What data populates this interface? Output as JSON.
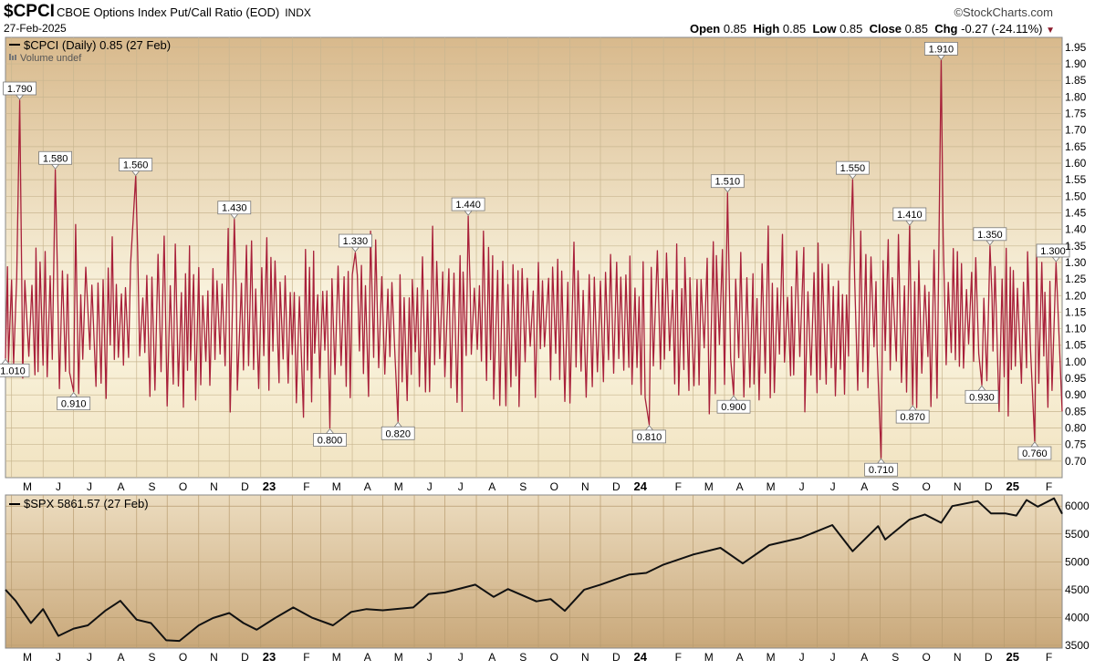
{
  "header": {
    "symbol": "$CPCI",
    "description": "CBOE Options Index Put/Call Ratio (EOD)",
    "exchange": "INDX",
    "date": "27-Feb-2025",
    "brand": "©StockCharts.com",
    "ohlc": {
      "open_label": "Open",
      "open": "0.85",
      "high_label": "High",
      "high": "0.85",
      "low_label": "Low",
      "low": "0.85",
      "close_label": "Close",
      "close": "0.85",
      "chg_label": "Chg",
      "chg": "-0.27 (-24.11%)"
    }
  },
  "colors": {
    "cpci_line": "#a8203a",
    "spx_line": "#111111",
    "panel_top": "#d8b98c",
    "panel_mid": "#fbf6e2",
    "lower_top": "#ecdcbf",
    "lower_bottom": "#c9a87a",
    "grid": "#c8b690"
  },
  "chart_data": [
    {
      "type": "line",
      "legend": "$CPCI (Daily) 0.85 (27 Feb)",
      "legend_sub": "Volume undef",
      "ylim": [
        0.65,
        1.98
      ],
      "y_ticks": [
        0.7,
        0.75,
        0.8,
        0.85,
        0.9,
        0.95,
        1.0,
        1.05,
        1.1,
        1.15,
        1.2,
        1.25,
        1.3,
        1.35,
        1.4,
        1.45,
        1.5,
        1.55,
        1.6,
        1.65,
        1.7,
        1.75,
        1.8,
        1.85,
        1.9,
        1.95
      ],
      "months": [
        "M",
        "J",
        "J",
        "A",
        "S",
        "O",
        "N",
        "D",
        "23",
        "F",
        "M",
        "A",
        "M",
        "J",
        "J",
        "A",
        "S",
        "O",
        "N",
        "D",
        "24",
        "F",
        "M",
        "A",
        "M",
        "J",
        "J",
        "A",
        "S",
        "O",
        "N",
        "D",
        "25",
        "F"
      ],
      "year_labels": [
        "23",
        "24",
        "25"
      ],
      "x_start": "2022-04-25",
      "x_end": "2025-02-27",
      "annotations": [
        {
          "date": "2022-04-25",
          "value": 1.01,
          "label": "1.010",
          "pos": "below"
        },
        {
          "date": "2022-05-09",
          "value": 1.79,
          "label": "1.790",
          "pos": "above"
        },
        {
          "date": "2022-06-13",
          "value": 1.58,
          "label": "1.580",
          "pos": "above"
        },
        {
          "date": "2022-07-01",
          "value": 0.91,
          "label": "0.910",
          "pos": "below"
        },
        {
          "date": "2022-08-31",
          "value": 1.56,
          "label": "1.560",
          "pos": "above"
        },
        {
          "date": "2022-12-06",
          "value": 1.43,
          "label": "1.430",
          "pos": "above"
        },
        {
          "date": "2023-03-10",
          "value": 0.8,
          "label": "0.800",
          "pos": "below"
        },
        {
          "date": "2023-04-04",
          "value": 1.33,
          "label": "1.330",
          "pos": "above"
        },
        {
          "date": "2023-05-16",
          "value": 0.82,
          "label": "0.820",
          "pos": "below"
        },
        {
          "date": "2023-07-24",
          "value": 1.44,
          "label": "1.440",
          "pos": "above"
        },
        {
          "date": "2024-01-18",
          "value": 0.81,
          "label": "0.810",
          "pos": "below"
        },
        {
          "date": "2024-04-04",
          "value": 1.51,
          "label": "1.510",
          "pos": "above"
        },
        {
          "date": "2024-04-10",
          "value": 0.9,
          "label": "0.900",
          "pos": "below"
        },
        {
          "date": "2024-08-05",
          "value": 1.55,
          "label": "1.550",
          "pos": "above"
        },
        {
          "date": "2024-09-02",
          "value": 0.71,
          "label": "0.710",
          "pos": "below"
        },
        {
          "date": "2024-09-30",
          "value": 1.41,
          "label": "1.410",
          "pos": "above"
        },
        {
          "date": "2024-10-03",
          "value": 0.87,
          "label": "0.870",
          "pos": "below"
        },
        {
          "date": "2024-10-31",
          "value": 1.91,
          "label": "1.910",
          "pos": "above"
        },
        {
          "date": "2024-12-10",
          "value": 0.93,
          "label": "0.930",
          "pos": "below"
        },
        {
          "date": "2024-12-18",
          "value": 1.35,
          "label": "1.350",
          "pos": "above"
        },
        {
          "date": "2025-01-31",
          "value": 0.76,
          "label": "0.760",
          "pos": "below"
        },
        {
          "date": "2025-02-21",
          "value": 1.3,
          "label": "1.300",
          "pos": "above"
        }
      ]
    },
    {
      "type": "line",
      "legend": "$SPX 5861.57 (27 Feb)",
      "ylim": [
        3450,
        6200
      ],
      "y_ticks": [
        3500,
        4000,
        4500,
        5000,
        5500,
        6000
      ],
      "series": [
        {
          "date": "2022-04-25",
          "value": 4500
        },
        {
          "date": "2022-05-05",
          "value": 4300
        },
        {
          "date": "2022-05-20",
          "value": 3900
        },
        {
          "date": "2022-06-01",
          "value": 4150
        },
        {
          "date": "2022-06-16",
          "value": 3670
        },
        {
          "date": "2022-07-01",
          "value": 3800
        },
        {
          "date": "2022-07-15",
          "value": 3860
        },
        {
          "date": "2022-08-01",
          "value": 4120
        },
        {
          "date": "2022-08-16",
          "value": 4300
        },
        {
          "date": "2022-09-01",
          "value": 3960
        },
        {
          "date": "2022-09-15",
          "value": 3900
        },
        {
          "date": "2022-09-30",
          "value": 3590
        },
        {
          "date": "2022-10-13",
          "value": 3580
        },
        {
          "date": "2022-11-01",
          "value": 3860
        },
        {
          "date": "2022-11-15",
          "value": 3990
        },
        {
          "date": "2022-12-01",
          "value": 4080
        },
        {
          "date": "2022-12-15",
          "value": 3900
        },
        {
          "date": "2022-12-28",
          "value": 3780
        },
        {
          "date": "2023-01-15",
          "value": 3990
        },
        {
          "date": "2023-02-02",
          "value": 4180
        },
        {
          "date": "2023-02-20",
          "value": 4000
        },
        {
          "date": "2023-03-13",
          "value": 3860
        },
        {
          "date": "2023-03-31",
          "value": 4100
        },
        {
          "date": "2023-04-15",
          "value": 4150
        },
        {
          "date": "2023-05-01",
          "value": 4130
        },
        {
          "date": "2023-05-31",
          "value": 4180
        },
        {
          "date": "2023-06-15",
          "value": 4420
        },
        {
          "date": "2023-07-01",
          "value": 4450
        },
        {
          "date": "2023-07-31",
          "value": 4590
        },
        {
          "date": "2023-08-18",
          "value": 4370
        },
        {
          "date": "2023-09-01",
          "value": 4510
        },
        {
          "date": "2023-09-29",
          "value": 4290
        },
        {
          "date": "2023-10-13",
          "value": 4330
        },
        {
          "date": "2023-10-27",
          "value": 4120
        },
        {
          "date": "2023-11-15",
          "value": 4500
        },
        {
          "date": "2023-12-01",
          "value": 4590
        },
        {
          "date": "2023-12-29",
          "value": 4770
        },
        {
          "date": "2024-01-15",
          "value": 4800
        },
        {
          "date": "2024-02-01",
          "value": 4950
        },
        {
          "date": "2024-03-01",
          "value": 5130
        },
        {
          "date": "2024-03-28",
          "value": 5250
        },
        {
          "date": "2024-04-19",
          "value": 4970
        },
        {
          "date": "2024-05-15",
          "value": 5300
        },
        {
          "date": "2024-06-15",
          "value": 5430
        },
        {
          "date": "2024-07-16",
          "value": 5660
        },
        {
          "date": "2024-08-05",
          "value": 5190
        },
        {
          "date": "2024-08-30",
          "value": 5640
        },
        {
          "date": "2024-09-06",
          "value": 5400
        },
        {
          "date": "2024-09-30",
          "value": 5760
        },
        {
          "date": "2024-10-15",
          "value": 5850
        },
        {
          "date": "2024-10-31",
          "value": 5700
        },
        {
          "date": "2024-11-11",
          "value": 6000
        },
        {
          "date": "2024-12-06",
          "value": 6090
        },
        {
          "date": "2024-12-19",
          "value": 5870
        },
        {
          "date": "2025-01-02",
          "value": 5870
        },
        {
          "date": "2025-01-13",
          "value": 5830
        },
        {
          "date": "2025-01-23",
          "value": 6110
        },
        {
          "date": "2025-02-03",
          "value": 5990
        },
        {
          "date": "2025-02-19",
          "value": 6140
        },
        {
          "date": "2025-02-27",
          "value": 5862
        }
      ]
    }
  ]
}
